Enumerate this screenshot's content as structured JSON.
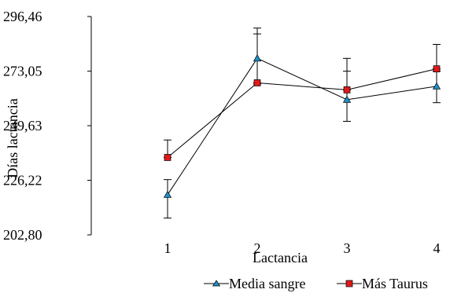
{
  "chart_data": {
    "type": "line",
    "title": "",
    "xlabel": "Lactancia",
    "ylabel": "Días lactancia",
    "categories": [
      "1",
      "2",
      "3",
      "4"
    ],
    "ylim": [
      202.8,
      296.46
    ],
    "yticks": [
      "202,80",
      "226,22",
      "249,63",
      "273,05",
      "296,46"
    ],
    "ytick_values": [
      202.8,
      226.22,
      249.63,
      273.05,
      296.46
    ],
    "grid": false,
    "legend_position": "bottom",
    "series": [
      {
        "name": "Media sangre",
        "marker": "triangle",
        "color": "#1f8fc8",
        "values": [
          220.0,
          278.5,
          260.8,
          266.5
        ],
        "err_low": [
          210.0,
          267.5,
          251.5,
          259.5
        ],
        "err_high": [
          226.5,
          291.5,
          273.0,
          273.0
        ]
      },
      {
        "name": "Más Taurus",
        "marker": "square",
        "color": "#dd1a1a",
        "values": [
          236.0,
          268.0,
          265.0,
          274.0
        ],
        "err_low": null,
        "err_high": [
          243.5,
          289.0,
          278.5,
          284.5
        ]
      }
    ]
  }
}
